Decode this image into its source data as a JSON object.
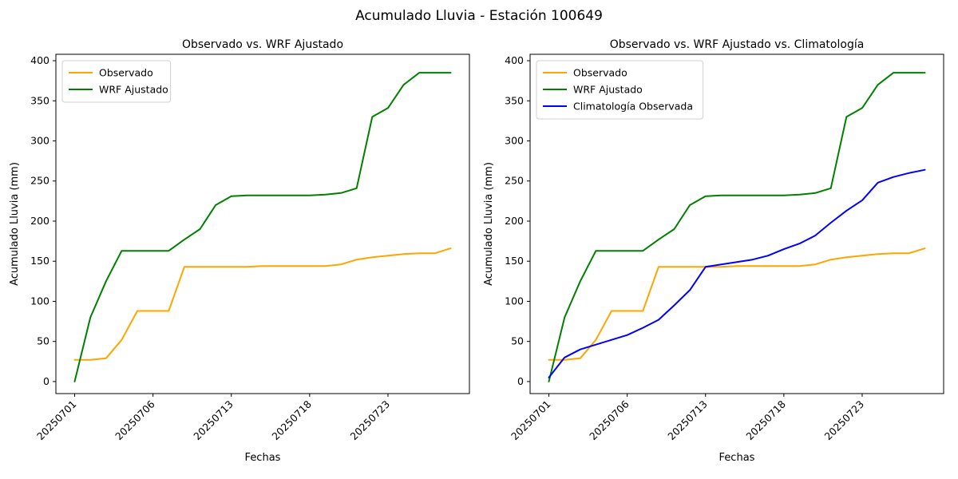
{
  "figure": {
    "title": "Acumulado Lluvia - Estación 100649",
    "background_color": "#ffffff"
  },
  "chart_data": [
    {
      "type": "line",
      "title": "Observado vs. WRF Ajustado",
      "xlabel": "Fechas",
      "ylabel": "Acumulado Lluvia (mm)",
      "x_point_count": 25,
      "xtick_positions": [
        0,
        5,
        10,
        15,
        20
      ],
      "xtick_labels": [
        "20250701",
        "20250706",
        "20250713",
        "20250718",
        "20250723"
      ],
      "xtick_rotation_deg": 45,
      "yticks": [
        0,
        50,
        100,
        150,
        200,
        250,
        300,
        350,
        400
      ],
      "ylim": [
        -15,
        408
      ],
      "xlim": [
        -1.2,
        25.2
      ],
      "grid": false,
      "legend_position": "upper-left",
      "series": [
        {
          "name": "Observado",
          "color": "#FFA500",
          "values": [
            27,
            27,
            29,
            52,
            88,
            88,
            88,
            143,
            143,
            143,
            143,
            143,
            144,
            144,
            144,
            144,
            144,
            146,
            152,
            155,
            157,
            159,
            160,
            160,
            166
          ]
        },
        {
          "name": "WRF Ajustado",
          "color": "#008000",
          "values": [
            0,
            80,
            125,
            163,
            163,
            163,
            163,
            177,
            190,
            220,
            231,
            232,
            232,
            232,
            232,
            232,
            233,
            235,
            241,
            330,
            341,
            370,
            385,
            385,
            385
          ]
        }
      ]
    },
    {
      "type": "line",
      "title": "Observado vs. WRF Ajustado vs. Climatología",
      "xlabel": "Fechas",
      "ylabel": "Acumulado Lluvia (mm)",
      "x_point_count": 25,
      "xtick_positions": [
        0,
        5,
        10,
        15,
        20
      ],
      "xtick_labels": [
        "20250701",
        "20250706",
        "20250713",
        "20250718",
        "20250723"
      ],
      "xtick_rotation_deg": 45,
      "yticks": [
        0,
        50,
        100,
        150,
        200,
        250,
        300,
        350,
        400
      ],
      "ylim": [
        -15,
        408
      ],
      "xlim": [
        -1.2,
        25.2
      ],
      "grid": false,
      "legend_position": "upper-left",
      "series": [
        {
          "name": "Observado",
          "color": "#FFA500",
          "values": [
            27,
            27,
            29,
            52,
            88,
            88,
            88,
            143,
            143,
            143,
            143,
            143,
            144,
            144,
            144,
            144,
            144,
            146,
            152,
            155,
            157,
            159,
            160,
            160,
            166
          ]
        },
        {
          "name": "WRF Ajustado",
          "color": "#008000",
          "values": [
            0,
            80,
            125,
            163,
            163,
            163,
            163,
            177,
            190,
            220,
            231,
            232,
            232,
            232,
            232,
            232,
            233,
            235,
            241,
            330,
            341,
            370,
            385,
            385,
            385
          ]
        },
        {
          "name": "Climatología Observada",
          "color": "#0000FF",
          "values": [
            5,
            30,
            40,
            46,
            52,
            58,
            67,
            77,
            95,
            114,
            143,
            146,
            149,
            152,
            157,
            165,
            172,
            182,
            198,
            213,
            226,
            248,
            255,
            260,
            264
          ]
        }
      ]
    }
  ],
  "layout_note": "two subplots sharing identical y axes 0-400 mm"
}
